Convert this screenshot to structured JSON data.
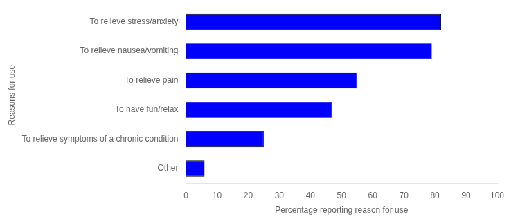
{
  "chart_data": {
    "type": "bar",
    "orientation": "horizontal",
    "categories": [
      "Other",
      "To relieve symptoms of a chronic condition",
      "To have fun/relax",
      "To relieve pain",
      "To relieve nausea/vomiting",
      "To relieve stress/anxiety"
    ],
    "values": [
      6,
      25,
      47,
      55,
      79,
      82
    ],
    "color": "#0000FF",
    "xlabel": "Percentage reporting reason for use",
    "ylabel": "Reasons for use",
    "xlim": [
      0,
      100
    ],
    "xticks": [
      0,
      10,
      20,
      30,
      40,
      50,
      60,
      70,
      80,
      90,
      100
    ],
    "grid": false
  }
}
